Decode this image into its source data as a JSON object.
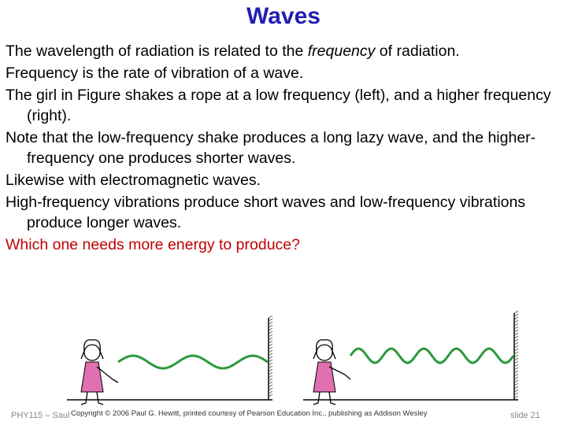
{
  "slide": {
    "title": "Waves",
    "bullets": [
      {
        "pre": "The wavelength of radiation is related to the ",
        "em": "frequency",
        "post": " of radiation."
      },
      {
        "text": "Frequency is the rate of vibration of a wave."
      },
      {
        "text": "The girl in Figure shakes a rope at a low frequency (left), and a higher frequency (right)."
      },
      {
        "text": "Note that the low-frequency shake produces a long lazy wave, and the higher-frequency one produces shorter waves."
      },
      {
        "text": "Likewise with electromagnetic waves."
      },
      {
        "text": "High-frequency vibrations produce short waves and low-frequency vibrations produce longer waves."
      },
      {
        "text": "Which one needs more energy to produce?"
      }
    ],
    "question_color": "#c00000",
    "title_color": "#1f1fb4"
  },
  "figure": {
    "copyright": "Copyright © 2006 Paul G. Hewitt, printed courtesy of Pearson Education Inc., publishing as Addison Wesley",
    "rope_color": "#2a9a3a",
    "girl_color": "#e070b0",
    "panels": [
      {
        "name": "low frequency",
        "cycles": 2.5
      },
      {
        "name": "high frequency",
        "cycles": 5
      }
    ]
  },
  "footer": {
    "course": "PHY115 – Saul",
    "slide": "slide 21"
  }
}
